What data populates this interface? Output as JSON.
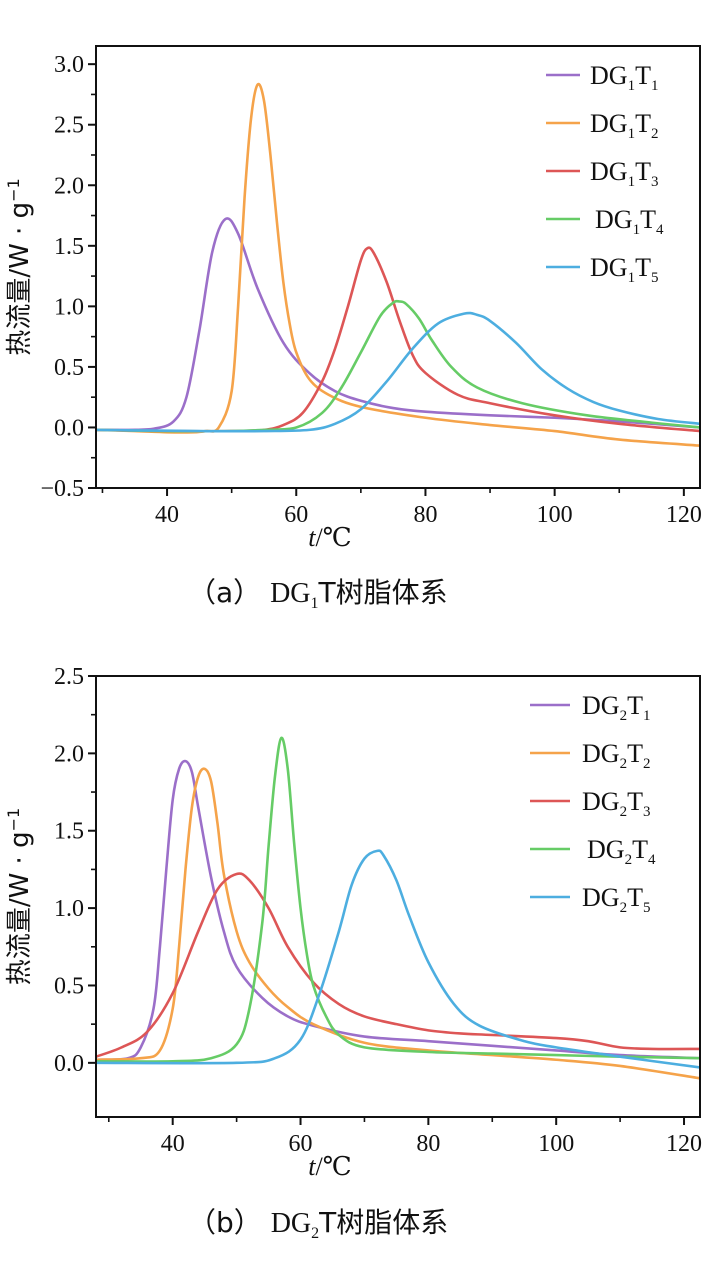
{
  "chart_data": [
    {
      "type": "line",
      "title": "",
      "xlabel": "t/℃",
      "ylabel": "热流量/W · g⁻¹",
      "xlim": [
        29,
        122.5
      ],
      "ylim": [
        -0.5,
        3.15
      ],
      "xticks": [
        40,
        60,
        80,
        100,
        120
      ],
      "yticks": [
        -0.5,
        0.0,
        0.5,
        1.0,
        1.5,
        2.0,
        2.5,
        3.0
      ],
      "ytick_labels": [
        "−0.5",
        "0.0",
        "0.5",
        "1.0",
        "1.5",
        "2.0",
        "2.5",
        "3.0"
      ],
      "legend_position": "top-right",
      "caption": {
        "prefix": "（a）",
        "main": "DG",
        "sub": "1",
        "rest": "T树脂体系"
      },
      "series": [
        {
          "name": "DG1T1",
          "base": "DG",
          "sub1": "1",
          "mid": "T",
          "sub2": "1",
          "color": "#9b6fc9",
          "x": [
            29,
            34,
            38,
            41,
            43,
            45,
            47,
            49,
            51,
            54,
            58,
            62,
            66,
            70,
            75,
            80,
            90,
            100,
            110,
            122.5
          ],
          "y": [
            -0.02,
            -0.02,
            -0.01,
            0.05,
            0.25,
            0.8,
            1.45,
            1.72,
            1.6,
            1.15,
            0.7,
            0.45,
            0.3,
            0.22,
            0.16,
            0.13,
            0.1,
            0.08,
            0.05,
            0.0
          ]
        },
        {
          "name": "DG1T2",
          "base": "DG",
          "sub1": "1",
          "mid": "T",
          "sub2": "2",
          "color": "#f5a34a",
          "x": [
            29,
            35,
            40,
            44,
            46,
            48,
            50,
            51,
            52,
            53,
            54,
            55,
            56,
            57,
            58,
            59,
            60,
            62,
            65,
            70,
            80,
            90,
            100,
            110,
            122.5
          ],
          "y": [
            -0.02,
            -0.03,
            -0.04,
            -0.04,
            -0.03,
            0.0,
            0.3,
            1.0,
            1.9,
            2.55,
            2.83,
            2.7,
            2.25,
            1.7,
            1.2,
            0.85,
            0.62,
            0.4,
            0.27,
            0.17,
            0.08,
            0.02,
            -0.03,
            -0.1,
            -0.15
          ]
        },
        {
          "name": "DG1T3",
          "base": "DG",
          "sub1": "1",
          "mid": "T",
          "sub2": "3",
          "color": "#dd5656",
          "x": [
            29,
            40,
            50,
            55,
            58,
            61,
            64,
            66,
            68,
            70,
            71,
            72,
            74,
            76,
            78,
            80,
            85,
            90,
            100,
            110,
            122.5
          ],
          "y": [
            -0.02,
            -0.03,
            -0.03,
            -0.02,
            0.02,
            0.12,
            0.38,
            0.65,
            1.0,
            1.38,
            1.48,
            1.44,
            1.2,
            0.88,
            0.6,
            0.45,
            0.27,
            0.2,
            0.1,
            0.03,
            -0.03
          ]
        },
        {
          "name": "DG1T4",
          "base": "DG",
          "sub1": "1",
          "mid": "T",
          "sub2": "4",
          "color": "#66cc66",
          "x": [
            29,
            40,
            50,
            55,
            60,
            64,
            67,
            70,
            73,
            75,
            76,
            77,
            79,
            81,
            84,
            88,
            95,
            105,
            115,
            122.5
          ],
          "y": [
            -0.02,
            -0.03,
            -0.03,
            -0.02,
            0.0,
            0.12,
            0.33,
            0.62,
            0.92,
            1.03,
            1.04,
            1.02,
            0.9,
            0.72,
            0.5,
            0.33,
            0.2,
            0.1,
            0.04,
            0.0
          ]
        },
        {
          "name": "DG1T5",
          "base": "DG",
          "sub1": "1",
          "mid": "T",
          "sub2": "5",
          "color": "#4daee0",
          "x": [
            29,
            45,
            55,
            62,
            66,
            70,
            74,
            78,
            82,
            86,
            88,
            90,
            94,
            98,
            102,
            106,
            110,
            116,
            122.5
          ],
          "y": [
            -0.02,
            -0.03,
            -0.03,
            -0.02,
            0.03,
            0.15,
            0.38,
            0.65,
            0.86,
            0.94,
            0.93,
            0.88,
            0.7,
            0.48,
            0.32,
            0.21,
            0.14,
            0.07,
            0.03
          ]
        }
      ]
    },
    {
      "type": "line",
      "title": "",
      "xlabel": "t/℃",
      "ylabel": "热流量/W · g⁻¹",
      "xlim": [
        28,
        122.5
      ],
      "ylim": [
        -0.35,
        2.5
      ],
      "xticks": [
        40,
        60,
        80,
        100,
        120
      ],
      "yticks": [
        0.0,
        0.5,
        1.0,
        1.5,
        2.0,
        2.5
      ],
      "ytick_labels": [
        "0.0",
        "0.5",
        "1.0",
        "1.5",
        "2.0",
        "2.5"
      ],
      "legend_position": "top-right",
      "caption": {
        "prefix": "（b）",
        "main": "DG",
        "sub": "2",
        "rest": "T树脂体系"
      },
      "series": [
        {
          "name": "DG2T1",
          "base": "DG",
          "sub1": "2",
          "mid": "T",
          "sub2": "1",
          "color": "#9b6fc9",
          "x": [
            28,
            33,
            35,
            37,
            38,
            39,
            40,
            41,
            42,
            43,
            44,
            46,
            48,
            50,
            54,
            58,
            62,
            70,
            80,
            90,
            100,
            110,
            122.5
          ],
          "y": [
            0.02,
            0.03,
            0.1,
            0.35,
            0.75,
            1.25,
            1.7,
            1.9,
            1.95,
            1.88,
            1.65,
            1.2,
            0.85,
            0.62,
            0.42,
            0.3,
            0.24,
            0.17,
            0.14,
            0.11,
            0.08,
            0.05,
            0.03
          ]
        },
        {
          "name": "DG2T2",
          "base": "DG",
          "sub1": "2",
          "mid": "T",
          "sub2": "2",
          "color": "#f5a34a",
          "x": [
            28,
            35,
            38,
            40,
            41,
            42,
            43,
            44,
            45,
            46,
            47,
            48,
            50,
            52,
            55,
            58,
            62,
            70,
            80,
            90,
            100,
            110,
            122.5
          ],
          "y": [
            0.02,
            0.03,
            0.08,
            0.35,
            0.75,
            1.25,
            1.65,
            1.85,
            1.9,
            1.82,
            1.55,
            1.22,
            0.85,
            0.65,
            0.48,
            0.36,
            0.25,
            0.13,
            0.08,
            0.05,
            0.02,
            -0.02,
            -0.1
          ]
        },
        {
          "name": "DG2T3",
          "base": "DG",
          "sub1": "2",
          "mid": "T",
          "sub2": "3",
          "color": "#dd5656",
          "x": [
            28,
            32,
            36,
            40,
            44,
            47,
            50,
            52,
            55,
            58,
            62,
            66,
            70,
            75,
            80,
            85,
            90,
            100,
            105,
            110,
            115,
            122.5
          ],
          "y": [
            0.04,
            0.1,
            0.2,
            0.45,
            0.85,
            1.12,
            1.22,
            1.18,
            1.0,
            0.75,
            0.52,
            0.38,
            0.3,
            0.25,
            0.21,
            0.19,
            0.18,
            0.16,
            0.14,
            0.1,
            0.09,
            0.09
          ]
        },
        {
          "name": "DG2T4",
          "base": "DG",
          "sub1": "2",
          "mid": "T",
          "sub2": "4",
          "color": "#66cc66",
          "x": [
            28,
            40,
            46,
            50,
            52,
            54,
            55,
            56,
            57,
            58,
            59,
            60,
            61,
            62,
            64,
            66,
            70,
            80,
            90,
            100,
            110,
            122.5
          ],
          "y": [
            0.01,
            0.01,
            0.03,
            0.12,
            0.35,
            0.9,
            1.4,
            1.85,
            2.1,
            1.9,
            1.42,
            1.0,
            0.7,
            0.5,
            0.3,
            0.18,
            0.1,
            0.07,
            0.06,
            0.05,
            0.04,
            0.03
          ]
        },
        {
          "name": "DG2T5",
          "base": "DG",
          "sub1": "2",
          "mid": "T",
          "sub2": "5",
          "color": "#4daee0",
          "x": [
            28,
            50,
            56,
            60,
            63,
            66,
            68,
            70,
            72,
            73,
            75,
            77,
            80,
            84,
            88,
            95,
            100,
            110,
            122.5
          ],
          "y": [
            0.0,
            0.0,
            0.03,
            0.15,
            0.45,
            0.85,
            1.15,
            1.32,
            1.37,
            1.34,
            1.18,
            0.95,
            0.65,
            0.38,
            0.24,
            0.14,
            0.1,
            0.04,
            -0.03
          ]
        }
      ]
    }
  ]
}
